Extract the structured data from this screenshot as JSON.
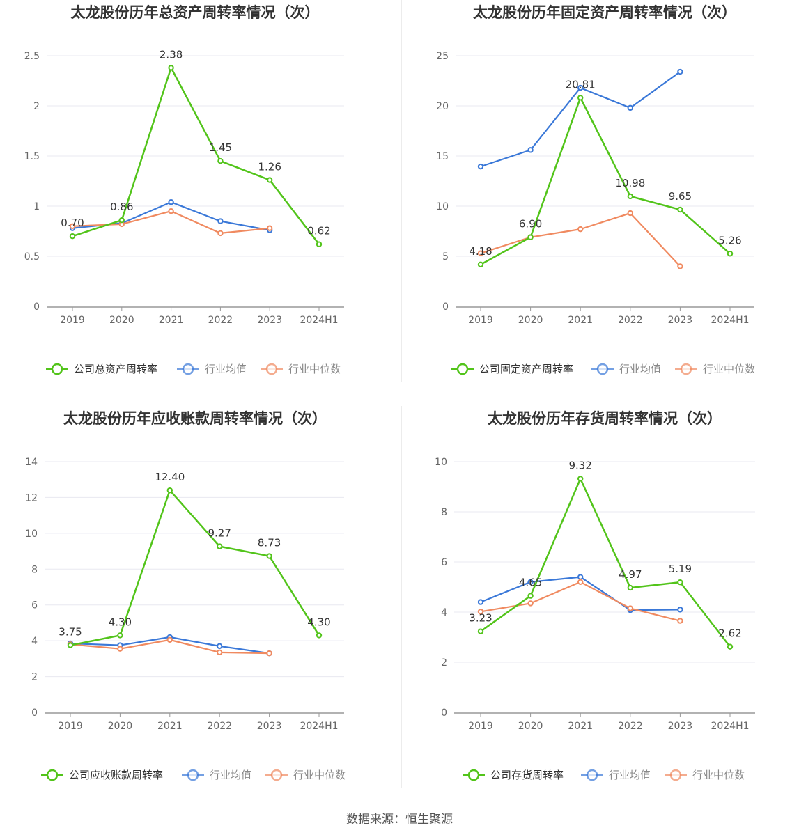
{
  "source": "数据来源：恒生聚源",
  "colors": {
    "company": "#52c41a",
    "avg": "#3a78d8",
    "median": "#f08a60",
    "grid": "#e8e8f0",
    "axis": "#999999"
  },
  "chart_data": [
    {
      "type": "line",
      "title": "太龙股份历年总资产周转率情况（次）",
      "categories": [
        "2019",
        "2020",
        "2021",
        "2022",
        "2023",
        "2024H1"
      ],
      "ylim": [
        0,
        2.5
      ],
      "yticks": [
        0,
        0.5,
        1,
        1.5,
        2,
        2.5
      ],
      "ytick_labels": [
        "0",
        "0.5",
        "1",
        "1.5",
        "2",
        "2.5"
      ],
      "series": [
        {
          "name": "公司总资产周转率",
          "key": "company",
          "values": [
            0.7,
            0.86,
            2.38,
            1.45,
            1.26,
            0.62
          ],
          "labels": [
            "0.70",
            "0.86",
            "2.38",
            "1.45",
            "1.26",
            "0.62"
          ]
        },
        {
          "name": "行业均值",
          "key": "avg",
          "values": [
            0.78,
            0.83,
            1.04,
            0.85,
            0.76,
            null
          ]
        },
        {
          "name": "行业中位数",
          "key": "median",
          "values": [
            0.8,
            0.82,
            0.95,
            0.73,
            0.78,
            null
          ]
        }
      ]
    },
    {
      "type": "line",
      "title": "太龙股份历年固定资产周转率情况（次）",
      "categories": [
        "2019",
        "2020",
        "2021",
        "2022",
        "2023",
        "2024H1"
      ],
      "ylim": [
        0,
        25
      ],
      "yticks": [
        0,
        5,
        10,
        15,
        20,
        25
      ],
      "ytick_labels": [
        "0",
        "5",
        "10",
        "15",
        "20",
        "25"
      ],
      "series": [
        {
          "name": "公司固定资产周转率",
          "key": "company",
          "values": [
            4.18,
            6.9,
            20.81,
            10.98,
            9.65,
            5.26
          ],
          "labels": [
            "4.18",
            "6.90",
            "20.81",
            "10.98",
            "9.65",
            "5.26"
          ]
        },
        {
          "name": "行业均值",
          "key": "avg",
          "values": [
            13.95,
            15.6,
            21.8,
            19.8,
            23.4,
            null
          ]
        },
        {
          "name": "行业中位数",
          "key": "median",
          "values": [
            5.3,
            6.9,
            7.7,
            9.3,
            4.0,
            null
          ]
        }
      ]
    },
    {
      "type": "line",
      "title": "太龙股份历年应收账款周转率情况（次）",
      "categories": [
        "2019",
        "2020",
        "2021",
        "2022",
        "2023",
        "2024H1"
      ],
      "ylim": [
        0,
        14
      ],
      "yticks": [
        0,
        2,
        4,
        6,
        8,
        10,
        12,
        14
      ],
      "ytick_labels": [
        "0",
        "2",
        "4",
        "6",
        "8",
        "10",
        "12",
        "14"
      ],
      "series": [
        {
          "name": "公司应收账款周转率",
          "key": "company",
          "values": [
            3.75,
            4.3,
            12.4,
            9.27,
            8.73,
            4.3
          ],
          "labels": [
            "3.75",
            "4.30",
            "12.40",
            "9.27",
            "8.73",
            "4.30"
          ]
        },
        {
          "name": "行业均值",
          "key": "avg",
          "values": [
            3.85,
            3.75,
            4.2,
            3.7,
            3.3,
            null
          ]
        },
        {
          "name": "行业中位数",
          "key": "median",
          "values": [
            3.8,
            3.55,
            4.05,
            3.35,
            3.3,
            null
          ]
        }
      ]
    },
    {
      "type": "line",
      "title": "太龙股份历年存货周转率情况（次）",
      "categories": [
        "2019",
        "2020",
        "2021",
        "2022",
        "2023",
        "2024H1"
      ],
      "ylim": [
        0,
        10
      ],
      "yticks": [
        0,
        2,
        4,
        6,
        8,
        10
      ],
      "ytick_labels": [
        "0",
        "2",
        "4",
        "6",
        "8",
        "10"
      ],
      "series": [
        {
          "name": "公司存货周转率",
          "key": "company",
          "values": [
            3.23,
            4.65,
            9.32,
            4.97,
            5.19,
            2.62
          ],
          "labels": [
            "3.23",
            "4.65",
            "9.32",
            "4.97",
            "5.19",
            "2.62"
          ]
        },
        {
          "name": "行业均值",
          "key": "avg",
          "values": [
            4.4,
            5.2,
            5.4,
            4.08,
            4.1,
            null
          ]
        },
        {
          "name": "行业中位数",
          "key": "median",
          "values": [
            4.02,
            4.35,
            5.2,
            4.15,
            3.65,
            null
          ]
        }
      ]
    }
  ]
}
